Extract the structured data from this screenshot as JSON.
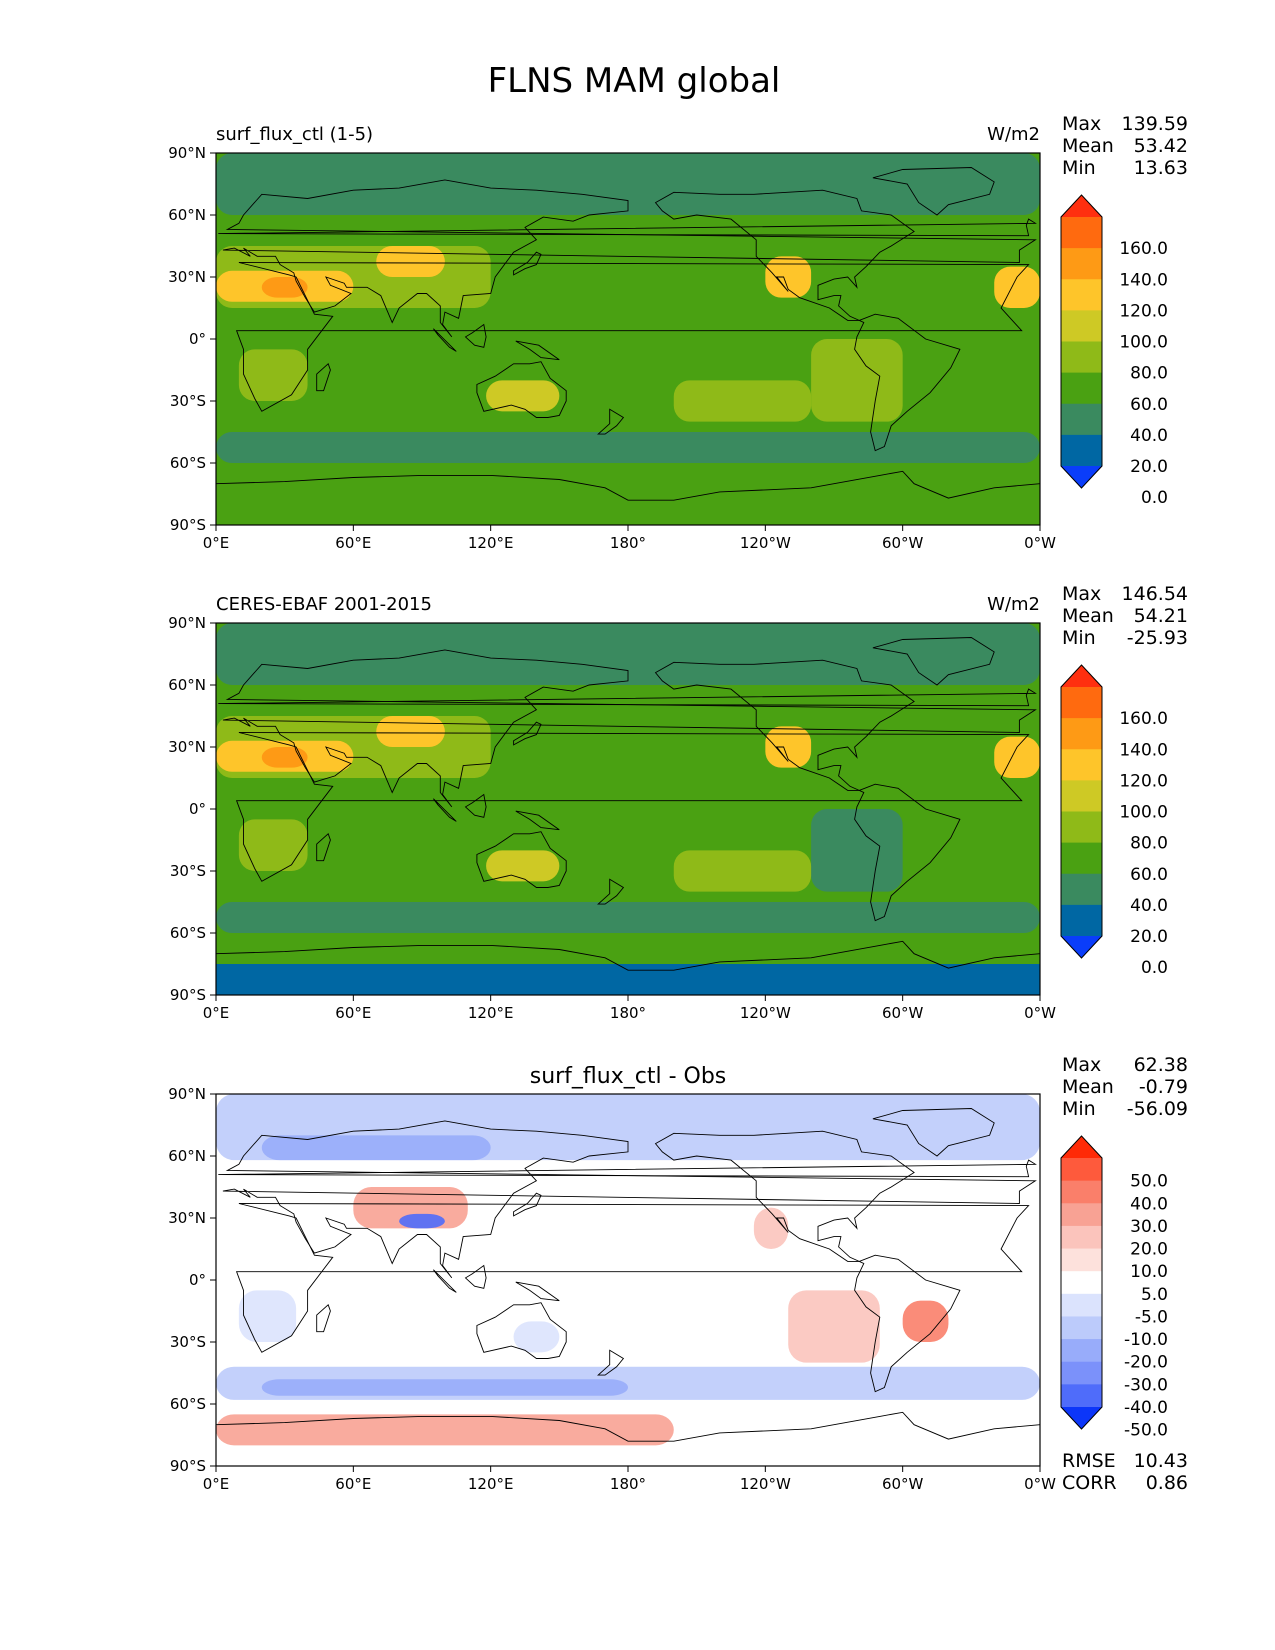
{
  "figure_title": "FLNS MAM global",
  "colors": {
    "ocean_main": "#4aa112",
    "land_outline": "#000000",
    "frame": "#000000"
  },
  "chart_data": [
    {
      "type": "heatmap",
      "subtitle_left": "surf_flux_ctl (1-5)",
      "subtitle_center": "",
      "units": "W/m2",
      "stats": [
        {
          "label": "Max",
          "value": "139.59"
        },
        {
          "label": "Mean",
          "value": "53.42"
        },
        {
          "label": "Min",
          "value": "13.63"
        }
      ],
      "x_ticks": [
        "0°E",
        "60°E",
        "120°E",
        "180°",
        "120°W",
        "60°W",
        "0°W"
      ],
      "y_ticks": [
        "90°N",
        "60°N",
        "30°N",
        "0°",
        "30°S",
        "60°S",
        "90°S"
      ],
      "xlim": [
        0,
        360
      ],
      "ylim": [
        -90,
        90
      ],
      "colorbar": {
        "levels": [
          "160.0",
          "140.0",
          "120.0",
          "100.0",
          "80.0",
          "60.0",
          "40.0",
          "20.0",
          "0.0"
        ],
        "colors": [
          "#ff2f0f",
          "#ff6a0f",
          "#fe9a15",
          "#fec52a",
          "#cec925",
          "#8fba18",
          "#4aa112",
          "#3a8a5f",
          "#0067a3",
          "#0a3dfa"
        ],
        "extend": "both"
      }
    },
    {
      "type": "heatmap",
      "subtitle_left": "CERES-EBAF 2001-2015",
      "subtitle_center": "",
      "units": "W/m2",
      "stats": [
        {
          "label": "Max",
          "value": "146.54"
        },
        {
          "label": "Mean",
          "value": "54.21"
        },
        {
          "label": "Min",
          "value": "-25.93"
        }
      ],
      "x_ticks": [
        "0°E",
        "60°E",
        "120°E",
        "180°",
        "120°W",
        "60°W",
        "0°W"
      ],
      "y_ticks": [
        "90°N",
        "60°N",
        "30°N",
        "0°",
        "30°S",
        "60°S",
        "90°S"
      ],
      "xlim": [
        0,
        360
      ],
      "ylim": [
        -90,
        90
      ],
      "colorbar": {
        "levels": [
          "160.0",
          "140.0",
          "120.0",
          "100.0",
          "80.0",
          "60.0",
          "40.0",
          "20.0",
          "0.0"
        ],
        "colors": [
          "#ff2f0f",
          "#ff6a0f",
          "#fe9a15",
          "#fec52a",
          "#cec925",
          "#8fba18",
          "#4aa112",
          "#3a8a5f",
          "#0067a3",
          "#0a3dfa"
        ],
        "extend": "both"
      }
    },
    {
      "type": "heatmap",
      "subtitle_left": "",
      "subtitle_center": "surf_flux_ctl - Obs",
      "units": "",
      "stats": [
        {
          "label": "Max",
          "value": "62.38"
        },
        {
          "label": "Mean",
          "value": "-0.79"
        },
        {
          "label": "Min",
          "value": "-56.09"
        }
      ],
      "stats_bottom": [
        {
          "label": "RMSE",
          "value": "10.43"
        },
        {
          "label": "CORR",
          "value": "0.86"
        }
      ],
      "x_ticks": [
        "0°E",
        "60°E",
        "120°E",
        "180°",
        "120°W",
        "60°W",
        "0°W"
      ],
      "y_ticks": [
        "90°N",
        "60°N",
        "30°N",
        "0°",
        "30°S",
        "60°S",
        "90°S"
      ],
      "xlim": [
        0,
        360
      ],
      "ylim": [
        -90,
        90
      ],
      "colorbar": {
        "levels": [
          "50.0",
          "40.0",
          "30.0",
          "20.0",
          "10.0",
          "5.0",
          "-5.0",
          "-10.0",
          "-20.0",
          "-30.0",
          "-40.0",
          "-50.0"
        ],
        "colors": [
          "#ff2a06",
          "#fe5a3c",
          "#fa7f6a",
          "#f8a294",
          "#fbc4bc",
          "#fde1dc",
          "#ffffff",
          "#dbe3fd",
          "#bccbfb",
          "#98acfa",
          "#7b91fa",
          "#4f6cfa",
          "#0c36f9"
        ],
        "extend": "both"
      }
    }
  ]
}
